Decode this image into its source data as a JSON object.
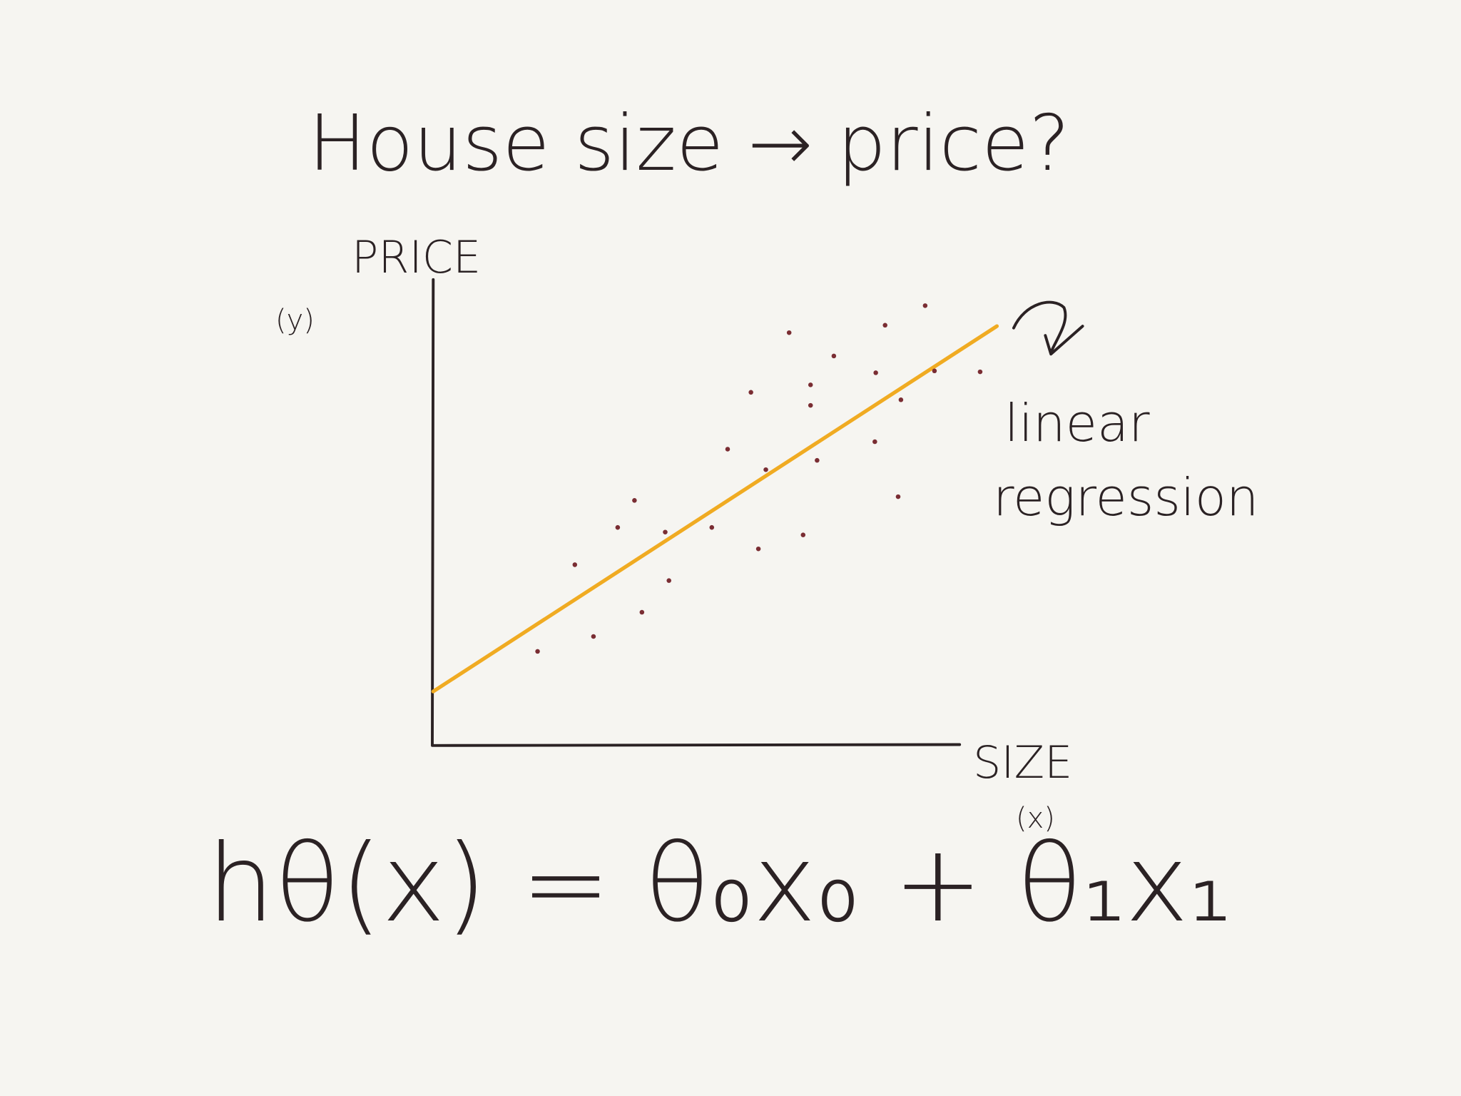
{
  "title": "House size → price?",
  "axes": {
    "y_label": "PRICE",
    "y_symbol": "(y)",
    "x_label": "SIZE",
    "x_symbol": "(x)"
  },
  "annotation": [
    "linear",
    "regression"
  ],
  "formula": "hθ(x) = θ₀x₀ + θ₁x₁"
}
